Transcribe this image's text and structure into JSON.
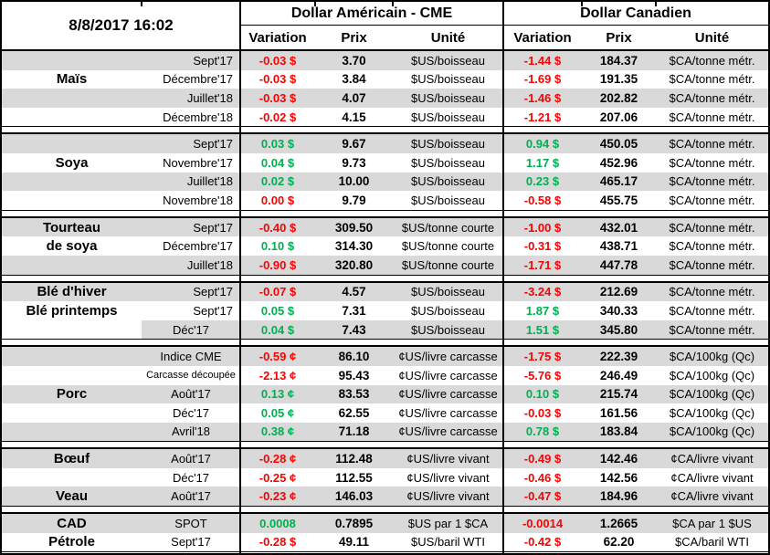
{
  "timestamp": "8/8/2017 16:02",
  "groups": {
    "us": {
      "title": "Dollar Américain - CME",
      "columns": [
        "Variation",
        "Prix",
        "Unité"
      ]
    },
    "ca": {
      "title": "Dollar Canadien",
      "columns": [
        "Variation",
        "Prix",
        "Unité"
      ]
    }
  },
  "colors": {
    "positive": "#00B050",
    "negative": "#FF0000",
    "row_band": "#D9D9D9"
  },
  "sections": [
    {
      "id": "mais",
      "rows": [
        {
          "label": "",
          "contract": "Sept'17",
          "us": {
            "variation": "-0.03 $",
            "direction": "negative",
            "prix": "3.70",
            "unite": "$US/boisseau"
          },
          "ca": {
            "variation": "-1.44 $",
            "direction": "negative",
            "prix": "184.37",
            "unite": "$CA/tonne métr."
          }
        },
        {
          "label": "Maïs",
          "contract": "Décembre'17",
          "us": {
            "variation": "-0.03 $",
            "direction": "negative",
            "prix": "3.84",
            "unite": "$US/boisseau"
          },
          "ca": {
            "variation": "-1.69 $",
            "direction": "negative",
            "prix": "191.35",
            "unite": "$CA/tonne métr."
          }
        },
        {
          "label": "",
          "contract": "Juillet'18",
          "us": {
            "variation": "-0.03 $",
            "direction": "negative",
            "prix": "4.07",
            "unite": "$US/boisseau"
          },
          "ca": {
            "variation": "-1.46 $",
            "direction": "negative",
            "prix": "202.82",
            "unite": "$CA/tonne métr."
          }
        },
        {
          "label": "",
          "contract": "Décembre'18",
          "us": {
            "variation": "-0.02 $",
            "direction": "negative",
            "prix": "4.15",
            "unite": "$US/boisseau"
          },
          "ca": {
            "variation": "-1.21 $",
            "direction": "negative",
            "prix": "207.06",
            "unite": "$CA/tonne métr."
          }
        }
      ]
    },
    {
      "id": "soya",
      "rows": [
        {
          "label": "",
          "contract": "Sept'17",
          "us": {
            "variation": "0.03 $",
            "direction": "positive",
            "prix": "9.67",
            "unite": "$US/boisseau"
          },
          "ca": {
            "variation": "0.94 $",
            "direction": "positive",
            "prix": "450.05",
            "unite": "$CA/tonne métr."
          }
        },
        {
          "label": "Soya",
          "contract": "Novembre'17",
          "us": {
            "variation": "0.04 $",
            "direction": "positive",
            "prix": "9.73",
            "unite": "$US/boisseau"
          },
          "ca": {
            "variation": "1.17 $",
            "direction": "positive",
            "prix": "452.96",
            "unite": "$CA/tonne métr."
          }
        },
        {
          "label": "",
          "contract": "Juillet'18",
          "us": {
            "variation": "0.02 $",
            "direction": "positive",
            "prix": "10.00",
            "unite": "$US/boisseau"
          },
          "ca": {
            "variation": "0.23 $",
            "direction": "positive",
            "prix": "465.17",
            "unite": "$CA/tonne métr."
          }
        },
        {
          "label": "",
          "contract": "Novembre'18",
          "us": {
            "variation": "0.00 $",
            "direction": "negative",
            "prix": "9.79",
            "unite": "$US/boisseau"
          },
          "ca": {
            "variation": "-0.58 $",
            "direction": "negative",
            "prix": "455.75",
            "unite": "$CA/tonne métr."
          }
        }
      ]
    },
    {
      "id": "tourteau",
      "rows": [
        {
          "label": "Tourteau",
          "contract": "Sept'17",
          "us": {
            "variation": "-0.40 $",
            "direction": "negative",
            "prix": "309.50",
            "unite": "$US/tonne courte"
          },
          "ca": {
            "variation": "-1.00 $",
            "direction": "negative",
            "prix": "432.01",
            "unite": "$CA/tonne métr."
          }
        },
        {
          "label": "de soya",
          "contract": "Décembre'17",
          "us": {
            "variation": "0.10 $",
            "direction": "positive",
            "prix": "314.30",
            "unite": "$US/tonne courte"
          },
          "ca": {
            "variation": "-0.31 $",
            "direction": "negative",
            "prix": "438.71",
            "unite": "$CA/tonne métr."
          }
        },
        {
          "label": "",
          "contract": "Juillet'18",
          "us": {
            "variation": "-0.90 $",
            "direction": "negative",
            "prix": "320.80",
            "unite": "$US/tonne courte"
          },
          "ca": {
            "variation": "-1.71 $",
            "direction": "negative",
            "prix": "447.78",
            "unite": "$CA/tonne métr."
          }
        }
      ]
    },
    {
      "id": "ble",
      "rows": [
        {
          "label": "Blé d'hiver",
          "contract": "Sept'17",
          "us": {
            "variation": "-0.07 $",
            "direction": "negative",
            "prix": "4.57",
            "unite": "$US/boisseau"
          },
          "ca": {
            "variation": "-3.24 $",
            "direction": "negative",
            "prix": "212.69",
            "unite": "$CA/tonne métr."
          }
        },
        {
          "label": "Blé printemps",
          "contract": "Sept'17",
          "us": {
            "variation": "0.05 $",
            "direction": "positive",
            "prix": "7.31",
            "unite": "$US/boisseau"
          },
          "ca": {
            "variation": "1.87 $",
            "direction": "positive",
            "prix": "340.33",
            "unite": "$CA/tonne métr."
          }
        },
        {
          "label": "",
          "contract": "Déc'17",
          "us": {
            "variation": "0.04 $",
            "direction": "positive",
            "prix": "7.43",
            "unite": "$US/boisseau"
          },
          "ca": {
            "variation": "1.51 $",
            "direction": "positive",
            "prix": "345.80",
            "unite": "$CA/tonne métr."
          }
        }
      ]
    },
    {
      "id": "porc",
      "rows": [
        {
          "label": "",
          "contract": "Indice CME",
          "us": {
            "variation": "-0.59 ¢",
            "direction": "negative",
            "prix": "86.10",
            "unite": "¢US/livre carcasse"
          },
          "ca": {
            "variation": "-1.75 $",
            "direction": "negative",
            "prix": "222.39",
            "unite": "$CA/100kg (Qc)"
          }
        },
        {
          "label": "",
          "contract": "Carcasse découpée",
          "us": {
            "variation": "-2.13 ¢",
            "direction": "negative",
            "prix": "95.43",
            "unite": "¢US/livre carcasse"
          },
          "ca": {
            "variation": "-5.76 $",
            "direction": "negative",
            "prix": "246.49",
            "unite": "$CA/100kg (Qc)"
          }
        },
        {
          "label": "Porc",
          "contract": "Août'17",
          "us": {
            "variation": "0.13 ¢",
            "direction": "positive",
            "prix": "83.53",
            "unite": "¢US/livre carcasse"
          },
          "ca": {
            "variation": "0.10 $",
            "direction": "positive",
            "prix": "215.74",
            "unite": "$CA/100kg (Qc)"
          }
        },
        {
          "label": "",
          "contract": "Déc'17",
          "us": {
            "variation": "0.05 ¢",
            "direction": "positive",
            "prix": "62.55",
            "unite": "¢US/livre carcasse"
          },
          "ca": {
            "variation": "-0.03 $",
            "direction": "negative",
            "prix": "161.56",
            "unite": "$CA/100kg (Qc)"
          }
        },
        {
          "label": "",
          "contract": "Avril'18",
          "us": {
            "variation": "0.38 ¢",
            "direction": "positive",
            "prix": "71.18",
            "unite": "¢US/livre carcasse"
          },
          "ca": {
            "variation": "0.78 $",
            "direction": "positive",
            "prix": "183.84",
            "unite": "$CA/100kg (Qc)"
          }
        }
      ]
    },
    {
      "id": "boeuf",
      "rows": [
        {
          "label": "Bœuf",
          "contract": "Août'17",
          "us": {
            "variation": "-0.28 ¢",
            "direction": "negative",
            "prix": "112.48",
            "unite": "¢US/livre vivant"
          },
          "ca": {
            "variation": "-0.49 $",
            "direction": "negative",
            "prix": "142.46",
            "unite": "¢CA/livre vivant"
          }
        },
        {
          "label": "",
          "contract": "Déc'17",
          "us": {
            "variation": "-0.25 ¢",
            "direction": "negative",
            "prix": "112.55",
            "unite": "¢US/livre vivant"
          },
          "ca": {
            "variation": "-0.46 $",
            "direction": "negative",
            "prix": "142.56",
            "unite": "¢CA/livre vivant"
          }
        },
        {
          "label": "Veau",
          "contract": "Août'17",
          "us": {
            "variation": "-0.23 ¢",
            "direction": "negative",
            "prix": "146.03",
            "unite": "¢US/livre vivant"
          },
          "ca": {
            "variation": "-0.47 $",
            "direction": "negative",
            "prix": "184.96",
            "unite": "¢CA/livre vivant"
          }
        }
      ]
    },
    {
      "id": "cad",
      "rows": [
        {
          "label": "CAD",
          "contract": "SPOT",
          "us": {
            "variation": "0.0008",
            "direction": "positive",
            "prix": "0.7895",
            "unite": "$US par 1 $CA"
          },
          "ca": {
            "variation": "-0.0014",
            "direction": "negative",
            "prix": "1.2665",
            "unite": "$CA par 1 $US"
          }
        },
        {
          "label": "Pétrole",
          "contract": "Sept'17",
          "us": {
            "variation": "-0.28 $",
            "direction": "negative",
            "prix": "49.11",
            "unite": "$US/baril WTI"
          },
          "ca": {
            "variation": "-0.42 $",
            "direction": "negative",
            "prix": "62.20",
            "unite": "$CA/baril WTI"
          }
        }
      ]
    }
  ]
}
